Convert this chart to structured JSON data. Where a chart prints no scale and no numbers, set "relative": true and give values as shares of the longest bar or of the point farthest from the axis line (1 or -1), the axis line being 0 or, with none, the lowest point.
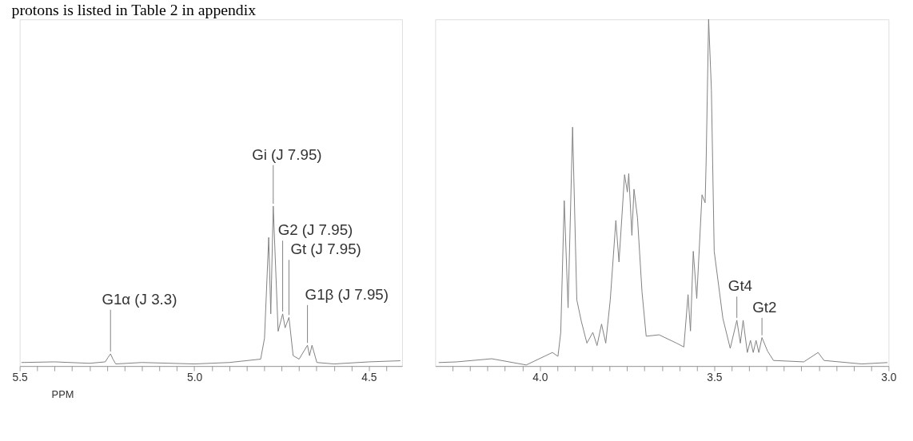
{
  "chart_data": [
    {
      "type": "line",
      "relative": true,
      "xlabel": "PPM",
      "xlim": [
        5.5,
        4.405
      ],
      "xticks": [
        {
          "value": 5.5,
          "label": "5.5"
        },
        {
          "value": 5.45,
          "label": null
        },
        {
          "value": 5.4,
          "label": null
        },
        {
          "value": 5.35,
          "label": null
        },
        {
          "value": 5.3,
          "label": null
        },
        {
          "value": 5.25,
          "label": null
        },
        {
          "value": 5.2,
          "label": null
        },
        {
          "value": 5.15,
          "label": null
        },
        {
          "value": 5.1,
          "label": null
        },
        {
          "value": 5.05,
          "label": null
        },
        {
          "value": 5.0,
          "label": "5.0"
        },
        {
          "value": 4.95,
          "label": null
        },
        {
          "value": 4.9,
          "label": null
        },
        {
          "value": 4.85,
          "label": null
        },
        {
          "value": 4.8,
          "label": null
        },
        {
          "value": 4.75,
          "label": null
        },
        {
          "value": 4.7,
          "label": null
        },
        {
          "value": 4.65,
          "label": null
        },
        {
          "value": 4.6,
          "label": null
        },
        {
          "value": 4.55,
          "label": null
        },
        4.5,
        {
          "value": 4.45,
          "label": null
        }
      ],
      "x": [
        5.495,
        5.4,
        5.3,
        5.255,
        5.247,
        5.24,
        5.233,
        5.225,
        5.15,
        5.0,
        4.9,
        4.81,
        4.799,
        4.787,
        4.781,
        4.774,
        4.76,
        4.747,
        4.74,
        4.729,
        4.717,
        4.7,
        4.676,
        4.67,
        4.663,
        4.649,
        4.6,
        4.5,
        4.41
      ],
      "series": [
        {
          "color": "#808080",
          "values": [
            0.022,
            0.026,
            0.017,
            0.026,
            0.054,
            0.076,
            0.043,
            0.013,
            0.022,
            0.013,
            0.022,
            0.043,
            0.174,
            0.804,
            0.326,
            1.0,
            0.217,
            0.326,
            0.239,
            0.304,
            0.065,
            0.043,
            0.13,
            0.065,
            0.13,
            0.022,
            0.013,
            0.026,
            0.033
          ]
        }
      ],
      "annotations": [
        "protons is listed in Table 2 in appendix",
        {
          "text": "G1α (J 3.3)",
          "x": 5.24,
          "y": 0.076
        },
        {
          "text": "Gi (J 7.95)",
          "x": 4.774,
          "y": 1.0
        },
        {
          "text": "G2 (J 7.95)",
          "x": 4.747,
          "y": 0.326
        },
        {
          "text": "Gt (J 7.95)",
          "x": 4.729,
          "y": 0.304
        },
        {
          "text": "G1β (J 7.95)",
          "x": 4.676,
          "y": 0.13
        }
      ]
    },
    {
      "type": "line",
      "relative": true,
      "xlim": [
        4.3,
        3.0
      ],
      "xticks": [
        {
          "value": 4.25,
          "label": null
        },
        {
          "value": 4.2,
          "label": null
        },
        {
          "value": 4.15,
          "label": null
        },
        {
          "value": 4.1,
          "label": null
        },
        {
          "value": 4.05,
          "label": null
        },
        {
          "value": 4.0,
          "label": "4.0"
        },
        {
          "value": 3.95,
          "label": null
        },
        {
          "value": 3.9,
          "label": null
        },
        {
          "value": 3.85,
          "label": null
        },
        {
          "value": 3.8,
          "label": null
        },
        {
          "value": 3.75,
          "label": null
        },
        {
          "value": 3.7,
          "label": null
        },
        {
          "value": 3.65,
          "label": null
        },
        {
          "value": 3.6,
          "label": null
        },
        {
          "value": 3.55,
          "label": null
        },
        3.5,
        {
          "value": 3.45,
          "label": null
        },
        {
          "value": 3.4,
          "label": null
        },
        {
          "value": 3.35,
          "label": null
        },
        {
          "value": 3.3,
          "label": null
        },
        {
          "value": 3.25,
          "label": null
        },
        {
          "value": 3.2,
          "label": null
        },
        {
          "value": 3.15,
          "label": null
        },
        {
          "value": 3.1,
          "label": null
        },
        {
          "value": 3.05,
          "label": null
        },
        {
          "value": 3.0,
          "label": "3.0"
        }
      ],
      "x": [
        4.29,
        4.238,
        4.138,
        4.039,
        3.964,
        3.948,
        3.94,
        3.93,
        3.919,
        3.906,
        3.894,
        3.881,
        3.865,
        3.848,
        3.836,
        3.823,
        3.811,
        3.798,
        3.782,
        3.773,
        3.757,
        3.749,
        3.745,
        3.736,
        3.73,
        3.72,
        3.707,
        3.695,
        3.658,
        3.608,
        3.587,
        3.575,
        3.568,
        3.56,
        3.55,
        3.535,
        3.526,
        3.523,
        3.516,
        3.508,
        3.5,
        3.475,
        3.454,
        3.435,
        3.425,
        3.417,
        3.405,
        3.396,
        3.388,
        3.38,
        3.372,
        3.363,
        3.347,
        3.33,
        3.243,
        3.202,
        3.185,
        3.077,
        3.003
      ],
      "series": [
        {
          "color": "#808080",
          "values": [
            0.01,
            0.012,
            0.021,
            0.003,
            0.039,
            0.028,
            0.097,
            0.477,
            0.168,
            0.689,
            0.191,
            0.129,
            0.066,
            0.097,
            0.059,
            0.121,
            0.066,
            0.191,
            0.42,
            0.3,
            0.552,
            0.502,
            0.555,
            0.377,
            0.51,
            0.428,
            0.214,
            0.086,
            0.09,
            0.066,
            0.055,
            0.206,
            0.101,
            0.331,
            0.195,
            0.494,
            0.471,
            0.595,
            1.0,
            0.797,
            0.331,
            0.137,
            0.051,
            0.132,
            0.066,
            0.132,
            0.039,
            0.074,
            0.039,
            0.074,
            0.039,
            0.082,
            0.043,
            0.016,
            0.012,
            0.039,
            0.016,
            0.006,
            0.01
          ]
        }
      ],
      "annotations": [
        {
          "text": "Gt4",
          "x": 3.435,
          "y": 0.132
        },
        {
          "text": "Gt2",
          "x": 3.363,
          "y": 0.082
        }
      ]
    }
  ]
}
